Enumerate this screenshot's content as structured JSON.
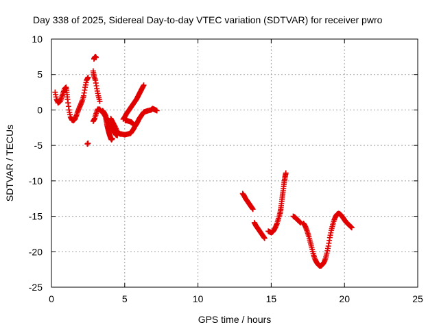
{
  "chart_data": {
    "type": "scatter",
    "title": "Day 338 of 2025, Sidereal Day-to-day VTEC variation (SDTVAR) for receiver pwro",
    "xlabel": "GPS time / hours",
    "ylabel": "SDTVAR / TECUs",
    "xlim": [
      0,
      25
    ],
    "ylim": [
      -25,
      10
    ],
    "xticks": [
      0,
      5,
      10,
      15,
      20,
      25
    ],
    "yticks": [
      -25,
      -20,
      -15,
      -10,
      -5,
      0,
      5,
      10
    ],
    "grid": true,
    "marker": "+",
    "color": "#e00000",
    "series": [
      {
        "name": "SDTVAR",
        "segments": [
          [
            [
              0.25,
              2.5
            ],
            [
              0.35,
              1.5
            ],
            [
              0.45,
              1.0
            ],
            [
              0.6,
              1.2
            ],
            [
              0.7,
              1.8
            ],
            [
              0.8,
              2.4
            ],
            [
              0.9,
              3.0
            ],
            [
              1.0,
              3.2
            ],
            [
              1.05,
              2.5
            ],
            [
              1.1,
              1.5
            ],
            [
              1.2,
              0.0
            ],
            [
              1.3,
              -1.0
            ],
            [
              1.4,
              -1.4
            ],
            [
              1.5,
              -1.5
            ],
            [
              1.6,
              -1.3
            ],
            [
              1.7,
              -0.8
            ],
            [
              1.8,
              -0.2
            ],
            [
              1.9,
              0.3
            ],
            [
              2.0,
              0.8
            ],
            [
              2.1,
              1.3
            ],
            [
              2.2,
              2.0
            ],
            [
              2.3,
              3.2
            ],
            [
              2.4,
              4.2
            ],
            [
              2.5,
              4.6
            ]
          ],
          [
            [
              2.45,
              -4.8
            ],
            [
              2.5,
              -4.7
            ]
          ],
          [
            [
              2.9,
              7.2
            ],
            [
              2.95,
              7.4
            ],
            [
              3.0,
              7.5
            ],
            [
              3.05,
              7.4
            ]
          ],
          [
            [
              2.85,
              5.5
            ],
            [
              2.9,
              4.8
            ],
            [
              3.0,
              4.2
            ],
            [
              3.1,
              3.0
            ],
            [
              3.2,
              2.0
            ],
            [
              3.3,
              1.2
            ]
          ],
          [
            [
              2.85,
              -1.6
            ],
            [
              2.95,
              -1.2
            ],
            [
              3.05,
              -0.5
            ],
            [
              3.15,
              0.1
            ],
            [
              3.3,
              0.1
            ],
            [
              3.45,
              -0.3
            ],
            [
              3.6,
              -0.6
            ],
            [
              3.7,
              -1.0
            ],
            [
              3.75,
              -1.6
            ],
            [
              3.8,
              -2.2
            ],
            [
              3.85,
              -2.6
            ],
            [
              3.9,
              -3.0
            ],
            [
              3.95,
              -3.4
            ],
            [
              4.0,
              -3.7
            ],
            [
              4.05,
              -4.0
            ],
            [
              4.1,
              -4.2
            ],
            [
              4.15,
              -4.0
            ]
          ],
          [
            [
              3.5,
              -0.1
            ],
            [
              3.6,
              -0.4
            ],
            [
              3.7,
              -0.8
            ],
            [
              3.8,
              -1.5
            ],
            [
              3.9,
              -2.0
            ],
            [
              4.0,
              -2.3
            ],
            [
              4.1,
              -2.5
            ],
            [
              4.2,
              -2.8
            ],
            [
              4.3,
              -3.2
            ],
            [
              4.4,
              -3.5
            ],
            [
              4.5,
              -3.6
            ]
          ],
          [
            [
              4.05,
              -1.2
            ],
            [
              4.15,
              -1.6
            ],
            [
              4.25,
              -2.0
            ],
            [
              4.35,
              -2.4
            ],
            [
              4.5,
              -3.0
            ],
            [
              4.6,
              -3.3
            ],
            [
              4.7,
              -3.4
            ],
            [
              4.8,
              -3.4
            ],
            [
              5.0,
              -3.5
            ],
            [
              5.2,
              -3.4
            ],
            [
              5.4,
              -3.3
            ],
            [
              5.5,
              -3.0
            ],
            [
              5.6,
              -2.7
            ],
            [
              5.7,
              -2.3
            ],
            [
              5.8,
              -2.0
            ],
            [
              5.9,
              -1.6
            ],
            [
              6.0,
              -1.2
            ],
            [
              6.1,
              -0.9
            ],
            [
              6.2,
              -0.6
            ],
            [
              6.3,
              -0.3
            ],
            [
              6.45,
              -0.2
            ],
            [
              6.6,
              -0.1
            ],
            [
              6.8,
              0.0
            ],
            [
              6.9,
              0.2
            ],
            [
              7.0,
              0.1
            ],
            [
              7.1,
              0.0
            ],
            [
              7.2,
              -0.1
            ]
          ],
          [
            [
              4.9,
              -1.3
            ],
            [
              5.0,
              -1.0
            ],
            [
              5.1,
              -0.6
            ],
            [
              5.2,
              -0.3
            ],
            [
              5.3,
              0.0
            ],
            [
              5.4,
              0.3
            ],
            [
              5.5,
              0.6
            ],
            [
              5.6,
              0.9
            ],
            [
              5.7,
              1.2
            ],
            [
              5.8,
              1.5
            ],
            [
              5.9,
              1.9
            ],
            [
              6.0,
              2.3
            ],
            [
              6.1,
              2.7
            ],
            [
              6.2,
              3.1
            ],
            [
              6.3,
              3.5
            ]
          ],
          [
            [
              5.05,
              -1.5
            ],
            [
              5.15,
              -1.5
            ],
            [
              5.3,
              -1.6
            ],
            [
              5.45,
              -1.7
            ],
            [
              5.55,
              -1.9
            ],
            [
              5.6,
              -2.1
            ]
          ],
          [
            [
              13.05,
              -11.8
            ],
            [
              13.15,
              -12.1
            ],
            [
              13.25,
              -12.5
            ],
            [
              13.35,
              -12.8
            ],
            [
              13.45,
              -13.1
            ],
            [
              13.55,
              -13.4
            ],
            [
              13.65,
              -13.7
            ],
            [
              13.75,
              -14.0
            ]
          ],
          [
            [
              13.85,
              -15.9
            ],
            [
              13.95,
              -16.3
            ],
            [
              14.05,
              -16.6
            ],
            [
              14.15,
              -16.9
            ],
            [
              14.25,
              -17.2
            ],
            [
              14.35,
              -17.5
            ],
            [
              14.45,
              -17.8
            ],
            [
              14.55,
              -18.1
            ]
          ],
          [
            [
              14.8,
              -17.1
            ],
            [
              14.9,
              -17.2
            ],
            [
              15.0,
              -17.3
            ],
            [
              15.1,
              -17.2
            ],
            [
              15.2,
              -16.9
            ],
            [
              15.3,
              -16.5
            ],
            [
              15.4,
              -16.0
            ],
            [
              15.5,
              -15.3
            ],
            [
              15.6,
              -14.6
            ],
            [
              15.65,
              -14.0
            ],
            [
              15.7,
              -13.2
            ],
            [
              15.75,
              -12.4
            ],
            [
              15.8,
              -11.6
            ],
            [
              15.85,
              -10.8
            ],
            [
              15.9,
              -10.0
            ],
            [
              15.95,
              -9.4
            ],
            [
              16.0,
              -8.9
            ]
          ],
          [
            [
              16.5,
              -15.0
            ],
            [
              16.6,
              -15.1
            ],
            [
              16.7,
              -15.3
            ],
            [
              16.8,
              -15.5
            ],
            [
              16.9,
              -15.7
            ],
            [
              17.0,
              -15.9
            ]
          ],
          [
            [
              17.2,
              -16.0
            ],
            [
              17.3,
              -16.3
            ],
            [
              17.4,
              -16.8
            ],
            [
              17.5,
              -17.4
            ],
            [
              17.6,
              -18.1
            ],
            [
              17.7,
              -18.9
            ],
            [
              17.8,
              -19.7
            ],
            [
              17.9,
              -20.5
            ],
            [
              18.0,
              -21.1
            ],
            [
              18.1,
              -21.5
            ],
            [
              18.2,
              -21.8
            ],
            [
              18.3,
              -22.0
            ],
            [
              18.4,
              -22.0
            ],
            [
              18.5,
              -21.8
            ],
            [
              18.6,
              -21.5
            ],
            [
              18.7,
              -21.0
            ],
            [
              18.8,
              -20.2
            ],
            [
              18.9,
              -19.2
            ],
            [
              19.0,
              -18.0
            ],
            [
              19.1,
              -17.0
            ],
            [
              19.2,
              -16.2
            ],
            [
              19.3,
              -15.5
            ],
            [
              19.4,
              -15.0
            ],
            [
              19.5,
              -14.7
            ],
            [
              19.6,
              -14.6
            ],
            [
              19.7,
              -14.7
            ],
            [
              19.8,
              -14.9
            ],
            [
              19.9,
              -15.2
            ],
            [
              20.0,
              -15.5
            ],
            [
              20.1,
              -15.8
            ],
            [
              20.2,
              -16.0
            ],
            [
              20.3,
              -16.2
            ],
            [
              20.4,
              -16.4
            ],
            [
              20.5,
              -16.6
            ]
          ]
        ]
      }
    ]
  }
}
